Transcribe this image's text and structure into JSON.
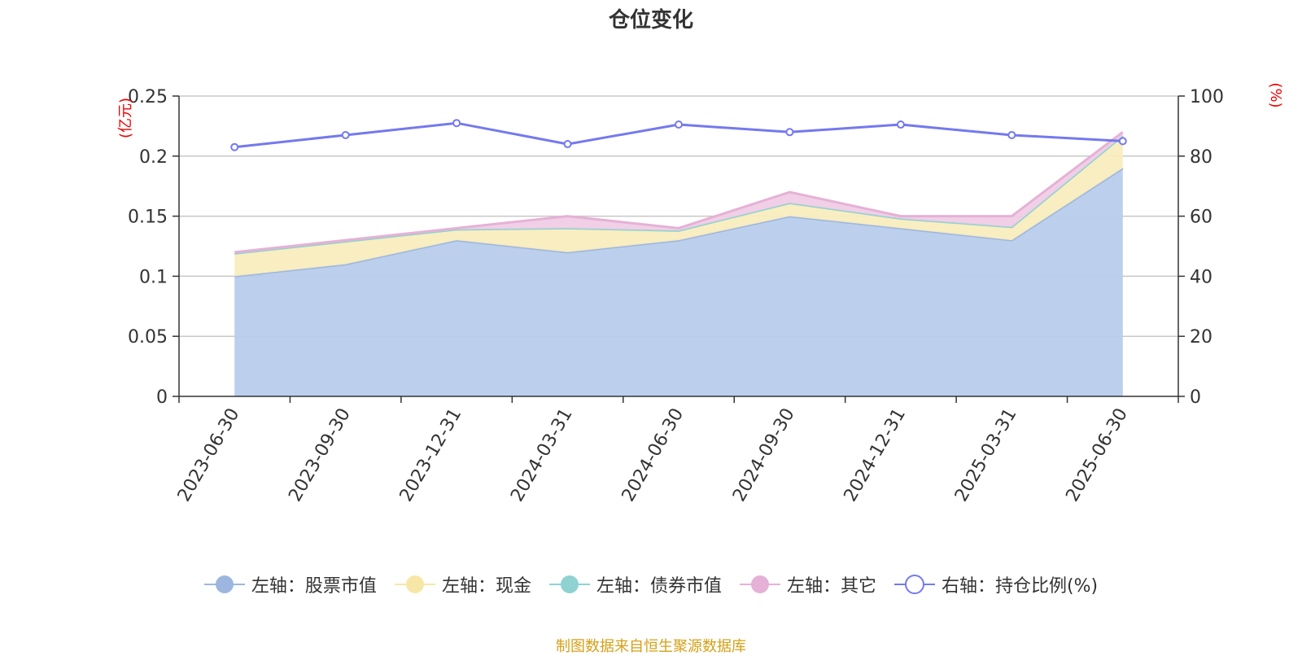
{
  "title": "仓位变化",
  "footer": "制图数据来自恒生聚源数据库",
  "chart_data": {
    "type": "area",
    "categories": [
      "2023-06-30",
      "2023-09-30",
      "2023-12-31",
      "2024-03-31",
      "2024-06-30",
      "2024-09-30",
      "2024-12-31",
      "2025-03-31",
      "2025-06-30"
    ],
    "y_left": {
      "unit": "(亿元)",
      "ylim": [
        0,
        0.25
      ],
      "ticks": [
        "0",
        "0.05",
        "0.1",
        "0.15",
        "0.2",
        "0.25"
      ],
      "tick_values": [
        0,
        0.05,
        0.1,
        0.15,
        0.2,
        0.25
      ]
    },
    "y_right": {
      "unit": "(%)",
      "ylim": [
        0,
        100
      ],
      "ticks": [
        "0",
        "20",
        "40",
        "60",
        "80",
        "100"
      ],
      "tick_values": [
        0,
        20,
        40,
        60,
        80,
        100
      ]
    },
    "series": [
      {
        "name": "左轴：股票市值",
        "axis": "left",
        "kind": "stacked-area",
        "color": "#9db6df",
        "fill": "#b8cceb",
        "values": [
          0.1,
          0.11,
          0.13,
          0.12,
          0.13,
          0.15,
          0.14,
          0.13,
          0.19
        ]
      },
      {
        "name": "左轴：现金",
        "axis": "left",
        "kind": "stacked-area",
        "color": "#f7e7a6",
        "fill": "#f9edbe",
        "values": [
          0.019,
          0.019,
          0.009,
          0.02,
          0.008,
          0.011,
          0.008,
          0.011,
          0.027
        ]
      },
      {
        "name": "左轴：债券市值",
        "axis": "left",
        "kind": "stacked-area",
        "color": "#8fd2d2",
        "fill": "#bfe6e6",
        "values": [
          0,
          0,
          0,
          0,
          0,
          0,
          0,
          0,
          0
        ]
      },
      {
        "name": "左轴：其它",
        "axis": "left",
        "kind": "stacked-area",
        "color": "#e6b1d6",
        "fill": "#f0cde6",
        "values": [
          0.001,
          0.001,
          0.001,
          0.01,
          0.002,
          0.009,
          0.002,
          0.009,
          0.003
        ]
      },
      {
        "name": "右轴：持仓比例(%)",
        "axis": "right",
        "kind": "line",
        "color": "#7479ee",
        "values": [
          83,
          87,
          91,
          84,
          90.5,
          88,
          90.5,
          87,
          85
        ]
      }
    ],
    "grid": true,
    "legend_position": "bottom"
  }
}
